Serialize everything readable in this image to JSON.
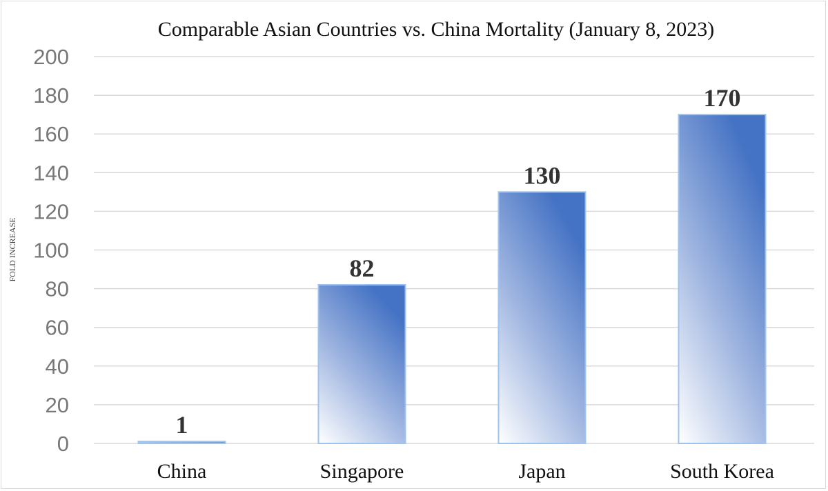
{
  "chart_data": {
    "type": "bar",
    "title": "Comparable Asian Countries vs. China Mortality (January 8, 2023)",
    "xlabel": "",
    "ylabel": "FOLD INCREASE",
    "categories": [
      "China",
      "Singapore",
      "Japan",
      "South Korea"
    ],
    "values": [
      1,
      82,
      130,
      170
    ],
    "data_labels": [
      "1",
      "82",
      "130",
      "170"
    ],
    "ylim": [
      0,
      200
    ],
    "yticks": [
      0,
      20,
      40,
      60,
      80,
      100,
      120,
      140,
      160,
      180,
      200
    ],
    "grid": true,
    "legend": "none",
    "colors": {
      "bar_top": "#4472c4",
      "bar_bottom": "#ffffff",
      "bar_border": "#9dc3f0",
      "grid": "#d9d9d9"
    }
  }
}
